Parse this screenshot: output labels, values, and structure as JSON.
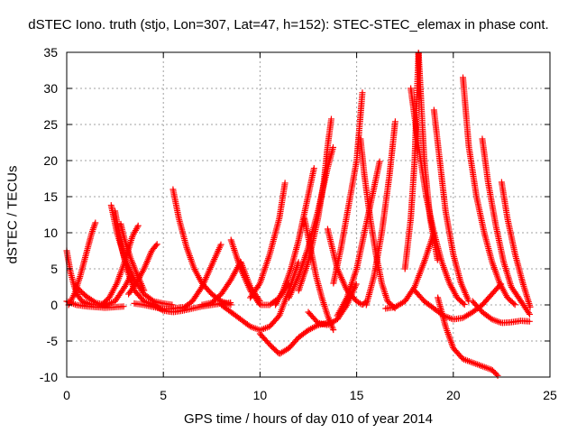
{
  "chart_data": {
    "type": "scatter",
    "title": "dSTEC Iono. truth (stjo, Lon=307, Lat=47, h=152): STEC-STEC_elemax in phase cont.",
    "xlabel": "GPS time / hours of day 010 of year 2014",
    "ylabel": "dSTEC  / TECUs",
    "xlim": [
      0,
      25
    ],
    "ylim": [
      -10,
      35
    ],
    "xticks": [
      0,
      5,
      10,
      15,
      20,
      25
    ],
    "yticks": [
      -10,
      -5,
      0,
      5,
      10,
      15,
      20,
      25,
      30,
      35
    ],
    "grid": true,
    "legend": "none",
    "marker": "+",
    "color": "#ff0000",
    "series": [
      {
        "x": [
          0.0,
          0.2,
          0.4,
          0.6,
          0.8,
          1.0,
          1.2,
          1.4
        ],
        "y": [
          7.5,
          4.5,
          2.5,
          1.2,
          0.5,
          0.3,
          0.1,
          0.0
        ]
      },
      {
        "x": [
          0.1,
          0.4,
          0.7,
          1.0,
          1.3,
          1.5
        ],
        "y": [
          0.0,
          1.5,
          4.0,
          7.0,
          10.0,
          11.5
        ]
      },
      {
        "x": [
          0.0,
          0.5,
          1.0,
          1.5,
          2.0,
          2.5,
          3.0
        ],
        "y": [
          0.5,
          0.0,
          -0.2,
          -0.3,
          -0.4,
          -0.3,
          -0.2
        ]
      },
      {
        "x": [
          0.5,
          1.0,
          1.5,
          2.0,
          2.5,
          3.0,
          3.3
        ],
        "y": [
          2.5,
          1.2,
          0.3,
          0.0,
          0.5,
          2.5,
          4.0
        ]
      },
      {
        "x": [
          2.3,
          2.6,
          3.0,
          3.5,
          4.0,
          4.5,
          5.0,
          5.5
        ],
        "y": [
          13.8,
          10.0,
          6.5,
          3.5,
          1.5,
          0.5,
          0.2,
          0.0
        ]
      },
      {
        "x": [
          2.5,
          2.8,
          3.1,
          3.5,
          4.0,
          4.5
        ],
        "y": [
          13.0,
          8.5,
          5.0,
          2.0,
          0.5,
          0.0
        ]
      },
      {
        "x": [
          1.8,
          2.2,
          2.6,
          3.0,
          3.4,
          3.7
        ],
        "y": [
          0.0,
          1.0,
          3.0,
          6.0,
          9.5,
          11.0
        ]
      },
      {
        "x": [
          2.8,
          3.0,
          3.3,
          3.6,
          4.0
        ],
        "y": [
          11.2,
          9.0,
          6.5,
          4.5,
          2.0
        ]
      },
      {
        "x": [
          3.2,
          3.6,
          4.0,
          4.4,
          4.7
        ],
        "y": [
          1.5,
          3.0,
          5.0,
          7.5,
          8.5
        ]
      },
      {
        "x": [
          3.5,
          4.0,
          4.5,
          5.0,
          5.5,
          6.0
        ],
        "y": [
          0.2,
          0.0,
          -0.3,
          -0.6,
          -0.5,
          -0.3
        ]
      },
      {
        "x": [
          5.5,
          5.8,
          6.2,
          6.6,
          7.0,
          7.5,
          8.0,
          8.5
        ],
        "y": [
          16.0,
          12.0,
          8.0,
          5.0,
          3.0,
          1.5,
          0.5,
          0.0
        ]
      },
      {
        "x": [
          6.0,
          6.5,
          7.0,
          7.5,
          8.0
        ],
        "y": [
          -0.5,
          0.5,
          2.5,
          5.5,
          8.5
        ]
      },
      {
        "x": [
          4.5,
          5.0,
          5.5,
          6.0,
          6.5,
          7.0,
          7.5,
          8.0,
          8.5
        ],
        "y": [
          0.0,
          -0.8,
          -1.0,
          -0.8,
          -0.5,
          -0.2,
          0.0,
          0.2,
          0.3
        ]
      },
      {
        "x": [
          7.0,
          7.5,
          8.0,
          8.5,
          9.0,
          9.5,
          10.0
        ],
        "y": [
          0.0,
          0.3,
          1.5,
          3.5,
          6.0,
          2.5,
          0.5
        ]
      },
      {
        "x": [
          8.5,
          9.0,
          9.5,
          10.0,
          10.5,
          11.0,
          11.5
        ],
        "y": [
          9.0,
          5.0,
          2.0,
          0.0,
          0.0,
          1.0,
          3.0
        ]
      },
      {
        "x": [
          8.0,
          8.5,
          9.0,
          9.5,
          10.0,
          10.5,
          11.0,
          11.5,
          12.0
        ],
        "y": [
          0.0,
          -1.0,
          -2.0,
          -3.0,
          -3.5,
          -3.0,
          -1.5,
          2.0,
          6.0
        ]
      },
      {
        "x": [
          10.0,
          10.5,
          11.0,
          11.5,
          12.0,
          12.5,
          13.0,
          13.5
        ],
        "y": [
          -4.0,
          -5.5,
          -6.8,
          -6.0,
          -4.5,
          -3.5,
          -2.8,
          -2.5
        ]
      },
      {
        "x": [
          9.5,
          10.0,
          10.5,
          11.0,
          11.3
        ],
        "y": [
          1.0,
          3.0,
          7.0,
          12.0,
          17.0
        ]
      },
      {
        "x": [
          10.8,
          11.2,
          11.6,
          12.0,
          12.4,
          12.8
        ],
        "y": [
          0.0,
          2.0,
          5.0,
          9.0,
          14.0,
          19.0
        ]
      },
      {
        "x": [
          11.5,
          12.0,
          12.5,
          13.0,
          13.5,
          13.8
        ],
        "y": [
          1.0,
          4.0,
          8.0,
          13.0,
          19.0,
          22.0
        ]
      },
      {
        "x": [
          12.0,
          12.5,
          13.0,
          13.3,
          13.5,
          13.7
        ],
        "y": [
          2.0,
          6.0,
          12.0,
          17.0,
          22.0,
          26.0
        ]
      },
      {
        "x": [
          12.3,
          12.6,
          12.9,
          13.2,
          13.5,
          13.8
        ],
        "y": [
          12.0,
          8.0,
          4.0,
          1.0,
          -1.5,
          -3.5
        ]
      },
      {
        "x": [
          12.5,
          13.0,
          13.5,
          14.0,
          14.5,
          15.0
        ],
        "y": [
          -1.0,
          -2.5,
          -2.8,
          -2.0,
          0.0,
          3.0
        ]
      },
      {
        "x": [
          13.5,
          14.0,
          14.5,
          15.0,
          15.3,
          15.5
        ],
        "y": [
          10.5,
          5.0,
          2.0,
          0.5,
          0.0,
          0.5
        ]
      },
      {
        "x": [
          13.8,
          14.2,
          14.6,
          15.0,
          15.3
        ],
        "y": [
          3.0,
          8.0,
          14.0,
          20.0,
          29.5
        ]
      },
      {
        "x": [
          14.0,
          14.5,
          15.0,
          15.4,
          15.8,
          16.2
        ],
        "y": [
          -1.5,
          1.0,
          5.0,
          10.0,
          15.0,
          20.0
        ]
      },
      {
        "x": [
          15.2,
          15.4,
          15.7,
          16.0,
          16.3,
          16.6,
          17.0
        ],
        "y": [
          23.0,
          18.0,
          12.0,
          7.0,
          3.0,
          0.5,
          -0.5
        ]
      },
      {
        "x": [
          15.5,
          15.9,
          16.3,
          16.7,
          17.0
        ],
        "y": [
          0.0,
          4.0,
          10.0,
          18.0,
          25.5
        ]
      },
      {
        "x": [
          16.5,
          17.0,
          17.5,
          18.0,
          18.5,
          19.0
        ],
        "y": [
          -0.5,
          -0.3,
          0.5,
          2.5,
          6.0,
          10.0
        ]
      },
      {
        "x": [
          17.5,
          17.8,
          18.0,
          18.2,
          18.5,
          18.8,
          19.2
        ],
        "y": [
          5.0,
          12.0,
          20.0,
          35.0,
          20.0,
          12.0,
          6.0
        ]
      },
      {
        "x": [
          17.8,
          18.2,
          18.6,
          19.0,
          19.4,
          19.8,
          20.2,
          20.6
        ],
        "y": [
          30.0,
          22.0,
          15.0,
          10.0,
          6.0,
          3.0,
          1.0,
          0.0
        ]
      },
      {
        "x": [
          18.0,
          18.5,
          19.0,
          19.5,
          20.0,
          20.5,
          21.0,
          21.5,
          22.0,
          22.5
        ],
        "y": [
          2.0,
          0.5,
          -0.5,
          -1.5,
          -2.0,
          -1.8,
          -1.0,
          0.0,
          1.5,
          3.0
        ]
      },
      {
        "x": [
          19.0,
          19.3,
          19.6,
          20.0,
          20.4,
          20.8
        ],
        "y": [
          27.0,
          20.0,
          13.0,
          7.0,
          3.0,
          0.5
        ]
      },
      {
        "x": [
          19.2,
          19.6,
          20.0,
          20.5,
          21.0,
          21.5,
          22.0,
          22.3
        ],
        "y": [
          1.0,
          -3.0,
          -6.0,
          -7.5,
          -8.0,
          -8.5,
          -9.0,
          -9.8
        ]
      },
      {
        "x": [
          20.5,
          20.8,
          21.2,
          21.6,
          22.0,
          22.4,
          22.8,
          23.2
        ],
        "y": [
          31.5,
          22.0,
          15.0,
          10.0,
          6.0,
          3.0,
          1.0,
          0.0
        ]
      },
      {
        "x": [
          21.5,
          21.8,
          22.2,
          22.6,
          23.0,
          23.5,
          24.0
        ],
        "y": [
          23.0,
          17.0,
          11.0,
          6.0,
          2.5,
          0.5,
          -1.5
        ]
      },
      {
        "x": [
          22.5,
          22.8,
          23.2,
          23.6,
          24.0
        ],
        "y": [
          17.0,
          12.0,
          7.0,
          3.0,
          -0.5
        ]
      },
      {
        "x": [
          21.0,
          21.5,
          22.0,
          22.5,
          23.0,
          23.5,
          24.0
        ],
        "y": [
          0.5,
          -1.0,
          -2.0,
          -2.5,
          -2.4,
          -2.2,
          -2.3
        ]
      }
    ]
  }
}
